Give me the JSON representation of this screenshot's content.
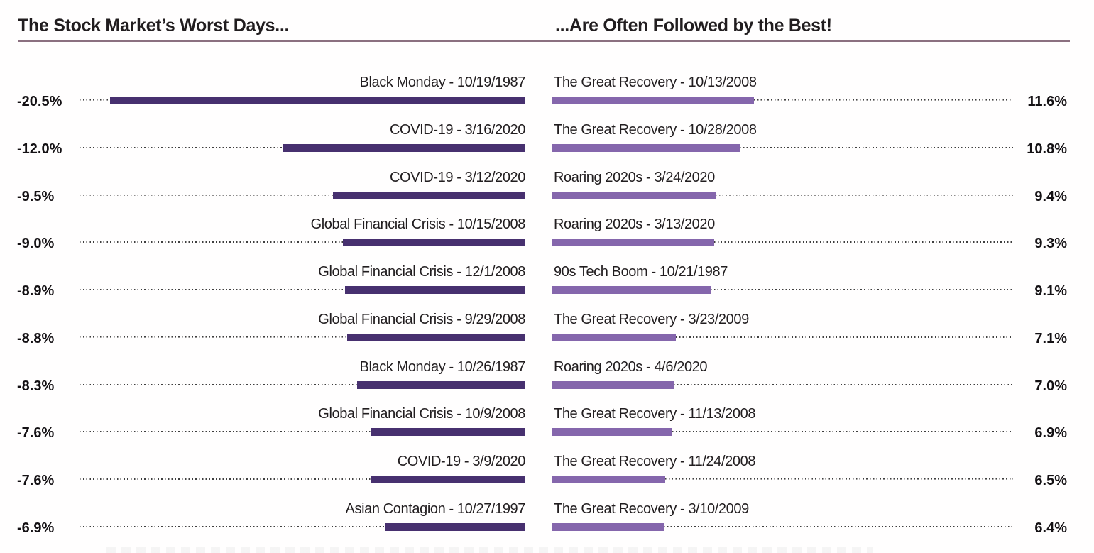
{
  "titles": {
    "left": "The Stock Market’s Worst Days...",
    "right": "...Are Often Followed by the Best!"
  },
  "colors": {
    "worst_bar": "#47306F",
    "best_bar": "#8566AC",
    "divider": "#8B7080",
    "text": "#211D1F",
    "leader_dots": "#3F3F3F",
    "background": "#FFFFFF"
  },
  "chart_data": {
    "type": "bar",
    "layout": "paired horizontal bars; worst days on left growing leftward (right-aligned at center), best days on right growing rightward; dotted leader lines connect bars to percentage labels at outer edges; grid off; no axes",
    "unit": "%",
    "worst_days": {
      "title": "The Stock Market’s Worst Days...",
      "bar_color": "#47306F",
      "value_range": [
        -20.5,
        -6.9
      ],
      "rows": [
        {
          "label": "Black Monday - 10/19/1987",
          "value": -20.5,
          "value_label": "-20.5%"
        },
        {
          "label": "COVID-19 - 3/16/2020",
          "value": -12.0,
          "value_label": "-12.0%"
        },
        {
          "label": "COVID-19 - 3/12/2020",
          "value": -9.5,
          "value_label": "-9.5%"
        },
        {
          "label": "Global Financial Crisis - 10/15/2008",
          "value": -9.0,
          "value_label": "-9.0%"
        },
        {
          "label": "Global Financial Crisis - 12/1/2008",
          "value": -8.9,
          "value_label": "-8.9%"
        },
        {
          "label": "Global Financial Crisis - 9/29/2008",
          "value": -8.8,
          "value_label": "-8.8%"
        },
        {
          "label": "Black Monday - 10/26/1987",
          "value": -8.3,
          "value_label": "-8.3%"
        },
        {
          "label": "Global Financial Crisis - 10/9/2008",
          "value": -7.6,
          "value_label": "-7.6%"
        },
        {
          "label": "COVID-19 - 3/9/2020",
          "value": -7.6,
          "value_label": "-7.6%"
        },
        {
          "label": "Asian Contagion - 10/27/1997",
          "value": -6.9,
          "value_label": "-6.9%"
        }
      ]
    },
    "best_days": {
      "title": "...Are Often Followed by the Best!",
      "bar_color": "#8566AC",
      "value_range": [
        6.4,
        11.6
      ],
      "rows": [
        {
          "label": "The Great Recovery - 10/13/2008",
          "value": 11.6,
          "value_label": "11.6%"
        },
        {
          "label": "The Great Recovery - 10/28/2008",
          "value": 10.8,
          "value_label": "10.8%"
        },
        {
          "label": "Roaring 2020s - 3/24/2020",
          "value": 9.4,
          "value_label": "9.4%"
        },
        {
          "label": "Roaring 2020s - 3/13/2020",
          "value": 9.3,
          "value_label": "9.3%"
        },
        {
          "label": "90s Tech Boom - 10/21/1987",
          "value": 9.1,
          "value_label": "9.1%"
        },
        {
          "label": "The Great Recovery - 3/23/2009",
          "value": 7.1,
          "value_label": "7.1%"
        },
        {
          "label": "Roaring 2020s - 4/6/2020",
          "value": 7.0,
          "value_label": "7.0%"
        },
        {
          "label": "The Great Recovery - 11/13/2008",
          "value": 6.9,
          "value_label": "6.9%"
        },
        {
          "label": "The Great Recovery - 11/24/2008",
          "value": 6.5,
          "value_label": "6.5%"
        },
        {
          "label": "The Great Recovery - 3/10/2009",
          "value": 6.4,
          "value_label": "6.4%"
        }
      ]
    }
  }
}
